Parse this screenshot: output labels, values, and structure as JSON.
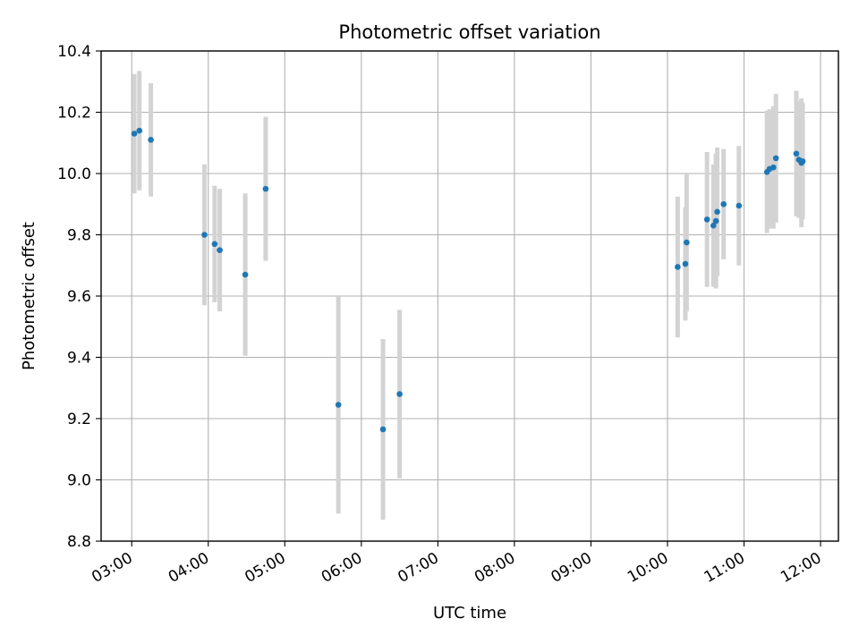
{
  "chart_data": {
    "type": "scatter",
    "title": "Photometric offset variation",
    "xlabel": "UTC time",
    "ylabel": "Photometric offset",
    "x_axis_type": "time",
    "xlim": [
      "02:36",
      "12:14"
    ],
    "ylim": [
      8.8,
      10.4
    ],
    "grid": true,
    "x_ticks": [
      "03:00",
      "04:00",
      "05:00",
      "06:00",
      "07:00",
      "08:00",
      "09:00",
      "10:00",
      "11:00",
      "12:00"
    ],
    "y_ticks": [
      "8.8",
      "9.0",
      "9.2",
      "9.4",
      "9.6",
      "9.8",
      "10.0",
      "10.2",
      "10.4"
    ],
    "colors": {
      "point": "#1f77b4",
      "errorbar": "#d3d3d3",
      "grid": "#b0b0b0"
    },
    "points": [
      {
        "x": "03:02",
        "y": 10.13,
        "yerr": 0.195
      },
      {
        "x": "03:06",
        "y": 10.14,
        "yerr": 0.195
      },
      {
        "x": "03:15",
        "y": 10.11,
        "yerr": 0.185
      },
      {
        "x": "03:57",
        "y": 9.8,
        "yerr": 0.23
      },
      {
        "x": "04:05",
        "y": 9.77,
        "yerr": 0.19
      },
      {
        "x": "04:09",
        "y": 9.75,
        "yerr": 0.2
      },
      {
        "x": "04:29",
        "y": 9.67,
        "yerr": 0.265
      },
      {
        "x": "04:45",
        "y": 9.95,
        "yerr": 0.235
      },
      {
        "x": "05:42",
        "y": 9.245,
        "yerr": 0.355
      },
      {
        "x": "06:17",
        "y": 9.165,
        "yerr": 0.295
      },
      {
        "x": "06:30",
        "y": 9.28,
        "yerr": 0.275
      },
      {
        "x": "10:08",
        "y": 9.695,
        "yerr": 0.23
      },
      {
        "x": "10:14",
        "y": 9.705,
        "yerr": 0.185
      },
      {
        "x": "10:15",
        "y": 9.775,
        "yerr": 0.225
      },
      {
        "x": "10:31",
        "y": 9.85,
        "yerr": 0.22
      },
      {
        "x": "10:36",
        "y": 9.83,
        "yerr": 0.2
      },
      {
        "x": "10:38",
        "y": 9.845,
        "yerr": 0.22
      },
      {
        "x": "10:39",
        "y": 9.875,
        "yerr": 0.21
      },
      {
        "x": "10:44",
        "y": 9.9,
        "yerr": 0.18
      },
      {
        "x": "10:56",
        "y": 9.895,
        "yerr": 0.195
      },
      {
        "x": "11:18",
        "y": 10.005,
        "yerr": 0.2
      },
      {
        "x": "11:20",
        "y": 10.015,
        "yerr": 0.195
      },
      {
        "x": "11:23",
        "y": 10.02,
        "yerr": 0.2
      },
      {
        "x": "11:25",
        "y": 10.05,
        "yerr": 0.21
      },
      {
        "x": "11:41",
        "y": 10.065,
        "yerr": 0.205
      },
      {
        "x": "11:43",
        "y": 10.045,
        "yerr": 0.19
      },
      {
        "x": "11:45",
        "y": 10.035,
        "yerr": 0.21
      },
      {
        "x": "11:46",
        "y": 10.04,
        "yerr": 0.19
      }
    ]
  }
}
